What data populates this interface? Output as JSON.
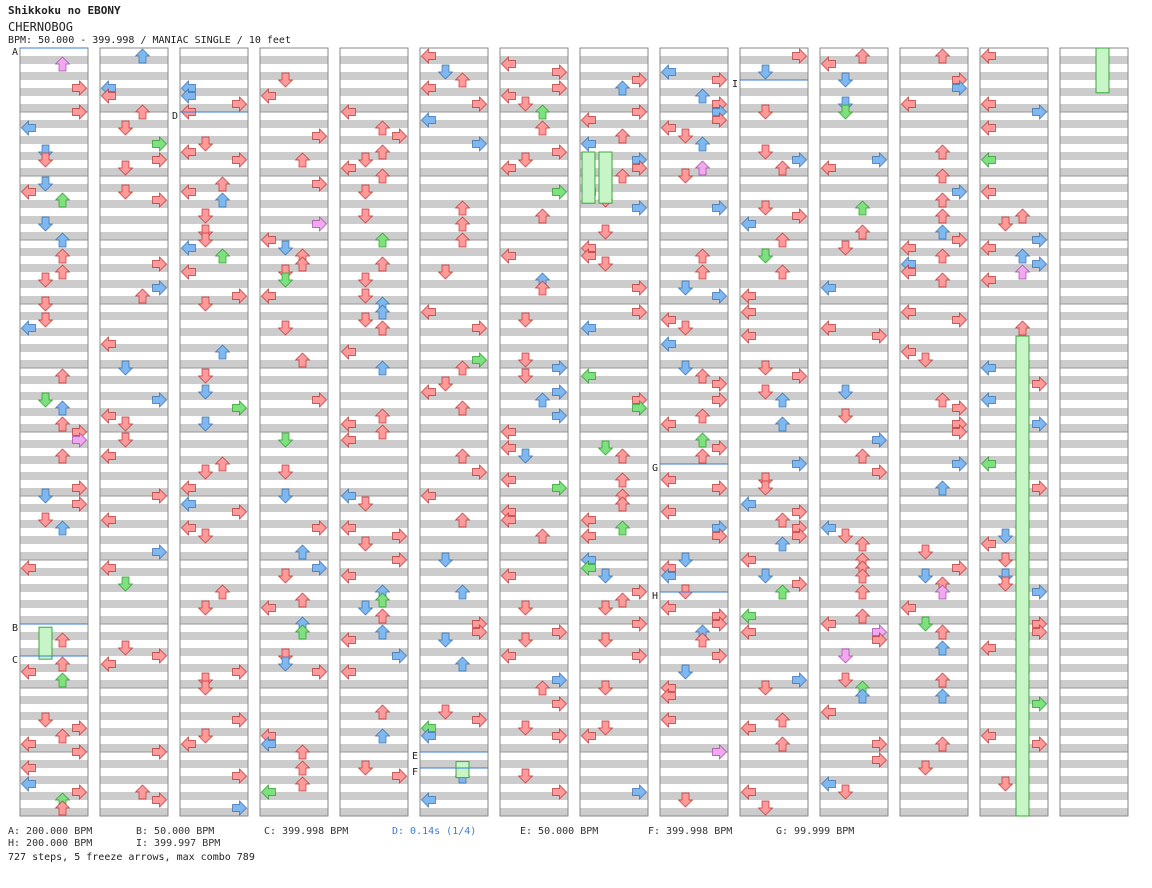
{
  "header": {
    "title": "Shikkoku no EBONY",
    "artist": "CHERNOBOG",
    "info": "BPM: 50.000 - 399.998 / MANIAC SINGLE / 10 feet"
  },
  "chart_data": {
    "type": "step-chart",
    "columns": 14,
    "lanes": [
      "left",
      "down",
      "up",
      "right"
    ],
    "note_types": {
      "normal": "#ff9a9a",
      "quarter": "#7fb8f0",
      "freeze": "#7ee07e",
      "shock": "#f0a8f0"
    },
    "markers": [
      {
        "label": "A",
        "column": 0,
        "beat": 0
      },
      {
        "label": "B",
        "column": 0,
        "beat": 36
      },
      {
        "label": "C",
        "column": 0,
        "beat": 38
      },
      {
        "label": "D",
        "column": 2,
        "beat": 4
      },
      {
        "label": "E",
        "column": 5,
        "beat": 44
      },
      {
        "label": "F",
        "column": 5,
        "beat": 45
      },
      {
        "label": "G",
        "column": 8,
        "beat": 26
      },
      {
        "label": "H",
        "column": 8,
        "beat": 34
      },
      {
        "label": "I",
        "column": 9,
        "beat": 2
      }
    ],
    "freezes": [
      {
        "column": 0,
        "lane": "down",
        "start": 36.2,
        "end": 38.2
      },
      {
        "column": 5,
        "lane": "up",
        "start": 44.6,
        "end": 45.6
      },
      {
        "column": 7,
        "lane": "left",
        "start": 6.5,
        "end": 9.7
      },
      {
        "column": 7,
        "lane": "down",
        "start": 6.5,
        "end": 9.7
      },
      {
        "column": 12,
        "lane": "up",
        "start": 18.0,
        "end": 48.0
      },
      {
        "column": 13,
        "lane": "up",
        "start": 0.0,
        "end": 2.8
      }
    ]
  },
  "legend": {
    "a": "A: 200.000 BPM",
    "b": "B: 50.000 BPM",
    "c": "C: 399.998 BPM",
    "d": "D: 0.14s (1/4)",
    "e": "E: 50.000 BPM",
    "f": "F: 399.998 BPM",
    "g": "G: 99.999 BPM",
    "h": "H: 200.000 BPM",
    "i": "I: 399.997 BPM"
  },
  "summary": "727 steps, 5 freeze arrows, max combo 789"
}
